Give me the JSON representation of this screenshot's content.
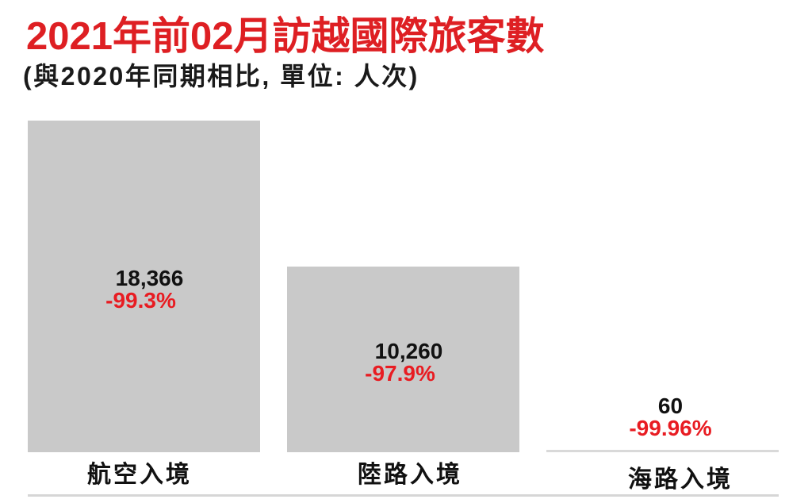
{
  "title": "2021年前02月訪越國際旅客數",
  "subtitle": "(與2020年同期相比, 單位: 人次)",
  "colors": {
    "title_red": "#de1f23",
    "pct_red": "#e81c22",
    "bar_gray": "#c9c9c9",
    "small_bar_gray": "#d9d9d9",
    "divider_gray": "#d6d6d6"
  },
  "chart_data": {
    "type": "bar",
    "title": "2021年前02月訪越國際旅客數",
    "subtitle": "(與2020年同期相比, 單位: 人次)",
    "categories": [
      "航空入境",
      "陸路入境",
      "海路入境"
    ],
    "values": [
      18366,
      10260,
      60
    ],
    "value_labels": [
      "18,366",
      "10,260",
      "60"
    ],
    "change_labels": [
      "-99.3%",
      "-97.9%",
      "-99.96%"
    ],
    "ylim": [
      0,
      18366
    ],
    "grid": false,
    "legend": false,
    "unit": "人次"
  }
}
